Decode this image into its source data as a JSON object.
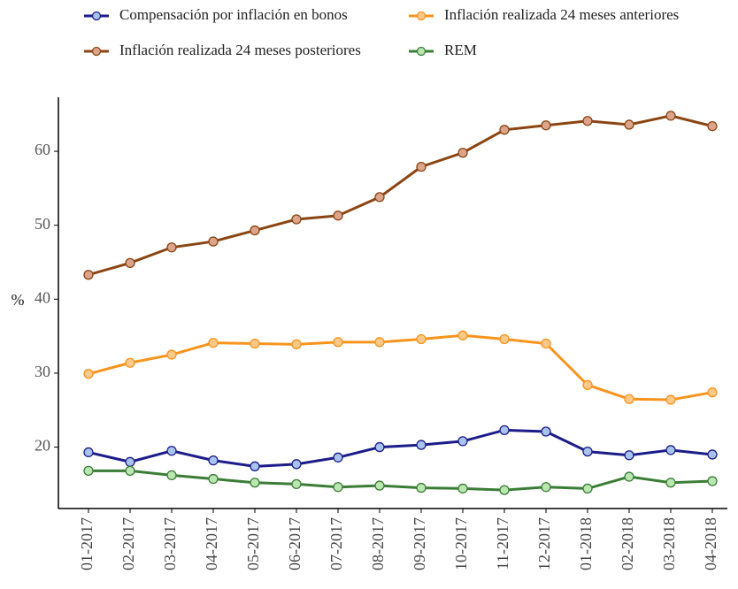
{
  "chart_data": {
    "type": "line",
    "categories": [
      "01-2017",
      "02-2017",
      "03-2017",
      "04-2017",
      "05-2017",
      "06-2017",
      "07-2017",
      "08-2017",
      "09-2017",
      "10-2017",
      "11-2017",
      "12-2017",
      "01-2018",
      "02-2018",
      "03-2018",
      "04-2018"
    ],
    "series": [
      {
        "name": "Compensación por inflación en bonos",
        "color": "#1c1c8a",
        "marker_fill": "#a9c3ef",
        "values": [
          19.3,
          18.0,
          19.5,
          18.2,
          17.4,
          17.7,
          18.6,
          20.0,
          20.3,
          20.8,
          22.3,
          22.1,
          19.4,
          18.9,
          19.6,
          19.0
        ]
      },
      {
        "name": "Inflación realizada 24 meses anteriores",
        "color": "#f7941d",
        "marker_fill": "#fcc98a",
        "values": [
          29.9,
          31.4,
          32.5,
          34.1,
          34.0,
          33.9,
          34.2,
          34.2,
          34.6,
          35.1,
          34.6,
          34.0,
          28.4,
          26.5,
          26.4,
          27.4
        ]
      },
      {
        "name": "Inflación realizada 24 meses posteriores",
        "color": "#8b4513",
        "marker_fill": "#dba48b",
        "values": [
          43.3,
          44.9,
          47.0,
          47.8,
          49.3,
          50.8,
          51.3,
          53.8,
          57.9,
          59.8,
          62.9,
          63.5,
          64.1,
          63.6,
          64.8,
          63.4
        ]
      },
      {
        "name": "REM",
        "color": "#3b7d36",
        "marker_fill": "#b9e6b1",
        "values": [
          16.8,
          16.8,
          16.2,
          15.7,
          15.2,
          15.0,
          14.6,
          14.8,
          14.5,
          14.4,
          14.2,
          14.6,
          14.4,
          16.0,
          15.2,
          15.4
        ]
      }
    ],
    "y_label": "%",
    "ylim": [
      11.7,
      67.3
    ],
    "yticks": [
      20,
      30,
      40,
      50,
      60
    ],
    "grid": false,
    "legend": "top"
  }
}
